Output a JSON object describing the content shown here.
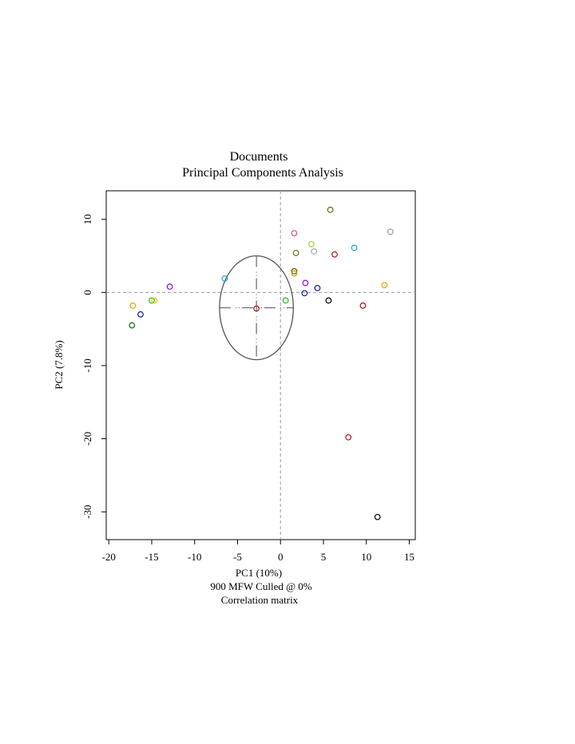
{
  "chart_data": {
    "type": "scatter",
    "title": "Documents",
    "subtitle": "Principal Components Analysis",
    "xlabel": "PC1 (10%)",
    "ylabel": "PC2 (7.8%)",
    "caption_lines": [
      "900 MFW  Culled @ 0%",
      "Correlation matrix"
    ],
    "xlim": [
      -20.3,
      15.7
    ],
    "ylim": [
      -33.8,
      13.9
    ],
    "x_ticks": [
      -20,
      -15,
      -10,
      -5,
      0,
      5,
      10,
      15
    ],
    "y_ticks": [
      10,
      0,
      -10,
      -20,
      -30
    ],
    "reference_lines": {
      "x": 0,
      "y": 0
    },
    "grid": false,
    "points": [
      {
        "x": -17.2,
        "y": -1.8,
        "color": "#e6a400"
      },
      {
        "x": -15.0,
        "y": -1.1,
        "color": "#22bb22"
      },
      {
        "x": -14.7,
        "y": -1.1,
        "color": "#f2c500"
      },
      {
        "x": -16.3,
        "y": -3.0,
        "color": "#1515a0"
      },
      {
        "x": -17.3,
        "y": -4.5,
        "color": "#0a6a0a"
      },
      {
        "x": -12.9,
        "y": 0.8,
        "color": "#8a12c8"
      },
      {
        "x": -6.5,
        "y": 1.9,
        "color": "#19a6c9"
      },
      {
        "x": -2.8,
        "y": -2.2,
        "color": "#b41414"
      },
      {
        "x": 0.6,
        "y": -1.1,
        "color": "#22bb22"
      },
      {
        "x": 1.6,
        "y": 2.9,
        "color": "#5a5a00"
      },
      {
        "x": 1.6,
        "y": 2.6,
        "color": "#c89a00"
      },
      {
        "x": 1.8,
        "y": 5.4,
        "color": "#5a7a00"
      },
      {
        "x": 1.6,
        "y": 8.1,
        "color": "#d44d96"
      },
      {
        "x": 3.6,
        "y": 6.6,
        "color": "#9acd32"
      },
      {
        "x": 3.9,
        "y": 5.6,
        "color": "#aaaaaa"
      },
      {
        "x": 5.8,
        "y": 11.3,
        "color": "#6b6b12"
      },
      {
        "x": 6.3,
        "y": 5.2,
        "color": "#b41414"
      },
      {
        "x": 2.9,
        "y": 1.3,
        "color": "#8a12c8"
      },
      {
        "x": 2.8,
        "y": -0.1,
        "color": "#1515a0"
      },
      {
        "x": 4.3,
        "y": 0.6,
        "color": "#1515a0"
      },
      {
        "x": 5.6,
        "y": -1.1,
        "color": "#000000"
      },
      {
        "x": 8.6,
        "y": 6.1,
        "color": "#19a6c9"
      },
      {
        "x": 9.6,
        "y": -1.8,
        "color": "#a01414"
      },
      {
        "x": 12.1,
        "y": 1.0,
        "color": "#e6a400"
      },
      {
        "x": 12.8,
        "y": 8.3,
        "color": "#999999"
      },
      {
        "x": 7.9,
        "y": -19.8,
        "color": "#b41414"
      },
      {
        "x": 11.3,
        "y": -30.7,
        "color": "#000000"
      }
    ],
    "crosshair": {
      "x": -2.8,
      "y": -2.1,
      "rx": 4.3,
      "ry": 7.1
    }
  }
}
